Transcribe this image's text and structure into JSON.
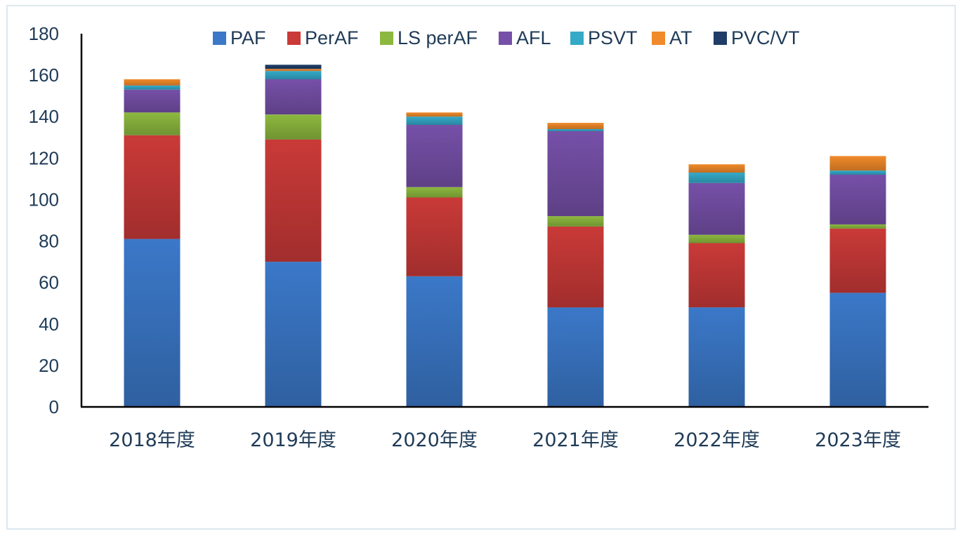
{
  "chart_data": {
    "type": "bar",
    "stacked": true,
    "title": "",
    "xlabel": "",
    "ylabel": "",
    "ylim": [
      0,
      180
    ],
    "yticks": [
      0,
      20,
      40,
      60,
      80,
      100,
      120,
      140,
      160,
      180
    ],
    "grid": false,
    "legend_position": "top",
    "categories": [
      "2018年度",
      "2019年度",
      "2020年度",
      "2021年度",
      "2022年度",
      "2023年度"
    ],
    "series": [
      {
        "name": "PAF",
        "color": "#3b78c8",
        "values": [
          81,
          70,
          63,
          48,
          48,
          55
        ]
      },
      {
        "name": "PerAF",
        "color": "#c93a38",
        "values": [
          50,
          59,
          38,
          39,
          31,
          31
        ]
      },
      {
        "name": "LS perAF",
        "color": "#8cb83e",
        "values": [
          11,
          12,
          5,
          5,
          4,
          2
        ]
      },
      {
        "name": "AFL",
        "color": "#7650a8",
        "values": [
          11,
          17,
          30,
          41,
          25,
          24
        ]
      },
      {
        "name": "PSVT",
        "color": "#35a9c8",
        "values": [
          2,
          4,
          4,
          1,
          5,
          2
        ]
      },
      {
        "name": "AT",
        "color": "#f08a2a",
        "values": [
          3,
          1,
          2,
          3,
          4,
          7
        ]
      },
      {
        "name": "PVC/VT",
        "color": "#1f3d66",
        "values": [
          0,
          2,
          0,
          0,
          0,
          0
        ]
      }
    ]
  }
}
